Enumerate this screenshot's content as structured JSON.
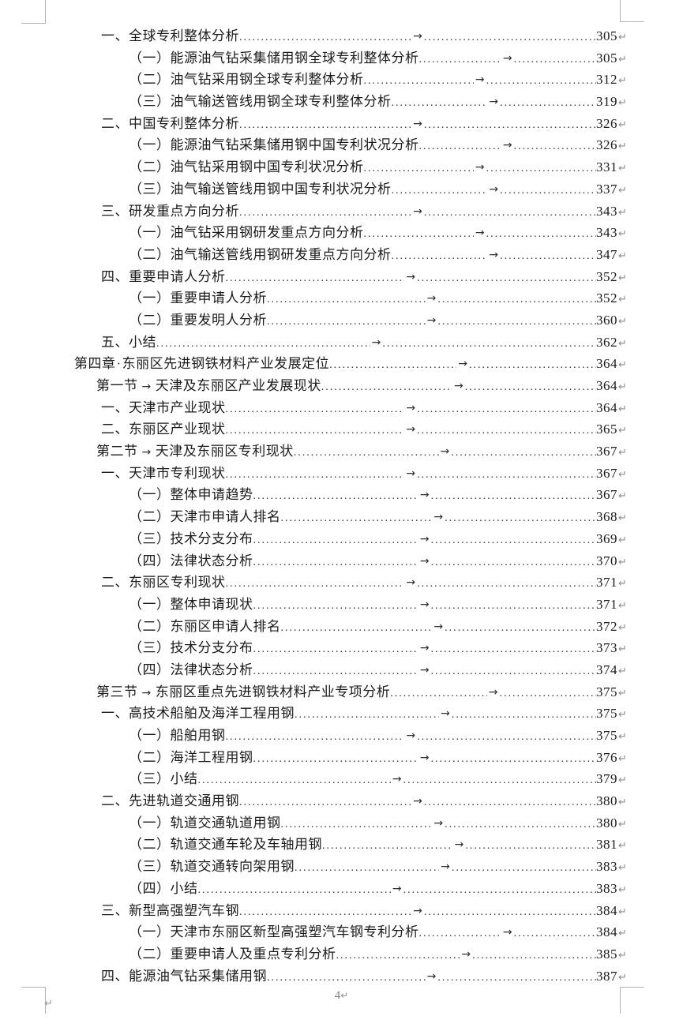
{
  "page": {
    "footer_page_number": "4",
    "background_color": "#ffffff",
    "text_color": "#1b1b1b",
    "formatting_mark_color": "#8e8e8e",
    "crop_mark_color": "#b5b5b5"
  },
  "marks": {
    "tab_arrow": "→",
    "return_mark": "↵",
    "space_dot": "·",
    "leader_char": "."
  },
  "toc": {
    "entries": [
      {
        "level": "item",
        "text": "一、全球专利整体分析",
        "page": "305"
      },
      {
        "level": "subitem",
        "text": "（一）能源油气钻采集储用钢全球专利整体分析",
        "page": "305"
      },
      {
        "level": "subitem",
        "text": "（二）油气钻采用钢全球专利整体分析",
        "page": "312"
      },
      {
        "level": "subitem",
        "text": "（三）油气输送管线用钢全球专利整体分析",
        "page": "319"
      },
      {
        "level": "item",
        "text": "二、中国专利整体分析",
        "page": "326"
      },
      {
        "level": "subitem",
        "text": "（一）能源油气钻采集储用钢中国专利状况分析",
        "page": "326"
      },
      {
        "level": "subitem",
        "text": "（二）油气钻采用钢中国专利状况分析",
        "page": "331"
      },
      {
        "level": "subitem",
        "text": "（三）油气输送管线用钢中国专利状况分析",
        "page": "337"
      },
      {
        "level": "item",
        "text": "三、研发重点方向分析",
        "page": "343"
      },
      {
        "level": "subitem",
        "text": "（一）油气钻采用钢研发重点方向分析",
        "page": "343"
      },
      {
        "level": "subitem",
        "text": "（二）油气输送管线用钢研发重点方向分析",
        "page": "347"
      },
      {
        "level": "item",
        "text": "四、重要申请人分析",
        "page": "352"
      },
      {
        "level": "subitem",
        "text": "（一）重要申请人分析",
        "page": "352"
      },
      {
        "level": "subitem",
        "text": "（二）重要发明人分析",
        "page": "360"
      },
      {
        "level": "item",
        "text": "五、小结",
        "page": "362"
      },
      {
        "level": "chapter",
        "prefix": "第四章",
        "sep": "dot",
        "text": "东丽区先进钢铁材料产业发展定位",
        "page": "364"
      },
      {
        "level": "section",
        "prefix": "第一节",
        "sep": "arrow",
        "text": "天津及东丽区产业发展现状",
        "page": "364"
      },
      {
        "level": "item",
        "text": "一、天津市产业现状",
        "page": "364"
      },
      {
        "level": "item",
        "text": "二、东丽区产业现状",
        "page": "365"
      },
      {
        "level": "section",
        "prefix": "第二节",
        "sep": "arrow",
        "text": "天津及东丽区专利现状",
        "page": "367"
      },
      {
        "level": "item",
        "text": "一、天津市专利现状",
        "page": "367"
      },
      {
        "level": "subitem",
        "text": "（一）整体申请趋势",
        "page": "367"
      },
      {
        "level": "subitem",
        "text": "（二）天津市申请人排名",
        "page": "368"
      },
      {
        "level": "subitem",
        "text": "（三）技术分支分布",
        "page": "369"
      },
      {
        "level": "subitem",
        "text": "（四）法律状态分析",
        "page": "370"
      },
      {
        "level": "item",
        "text": "二、东丽区专利现状",
        "page": "371"
      },
      {
        "level": "subitem",
        "text": "（一）整体申请现状",
        "page": "371"
      },
      {
        "level": "subitem",
        "text": "（二）东丽区申请人排名",
        "page": "372"
      },
      {
        "level": "subitem",
        "text": "（三）技术分支分布",
        "page": "373"
      },
      {
        "level": "subitem",
        "text": "（四）法律状态分析",
        "page": "374"
      },
      {
        "level": "section",
        "prefix": "第三节",
        "sep": "arrow",
        "text": "东丽区重点先进钢铁材料产业专项分析",
        "page": "375"
      },
      {
        "level": "item",
        "text": "一、高技术船舶及海洋工程用钢",
        "page": "375"
      },
      {
        "level": "subitem",
        "text": "（一）船舶用钢",
        "page": "375"
      },
      {
        "level": "subitem",
        "text": "（二）海洋工程用钢",
        "page": "376"
      },
      {
        "level": "subitem",
        "text": "（三）小结",
        "page": "379"
      },
      {
        "level": "item",
        "text": "二、先进轨道交通用钢",
        "page": "380"
      },
      {
        "level": "subitem",
        "text": "（一）轨道交通轨道用钢",
        "page": "380"
      },
      {
        "level": "subitem",
        "text": "（二）轨道交通车轮及车轴用钢",
        "page": "381"
      },
      {
        "level": "subitem",
        "text": "（三）轨道交通转向架用钢",
        "page": "383"
      },
      {
        "level": "subitem",
        "text": "（四）小结",
        "page": "383"
      },
      {
        "level": "item",
        "text": "三、新型高强塑汽车钢",
        "page": "384"
      },
      {
        "level": "subitem",
        "text": "（一）天津市东丽区新型高强塑汽车钢专利分析",
        "page": "384"
      },
      {
        "level": "subitem",
        "text": "（二）重要申请人及重点专利分析",
        "page": "385"
      },
      {
        "level": "item",
        "text": "四、能源油气钻采集储用钢",
        "page": "387"
      }
    ]
  }
}
